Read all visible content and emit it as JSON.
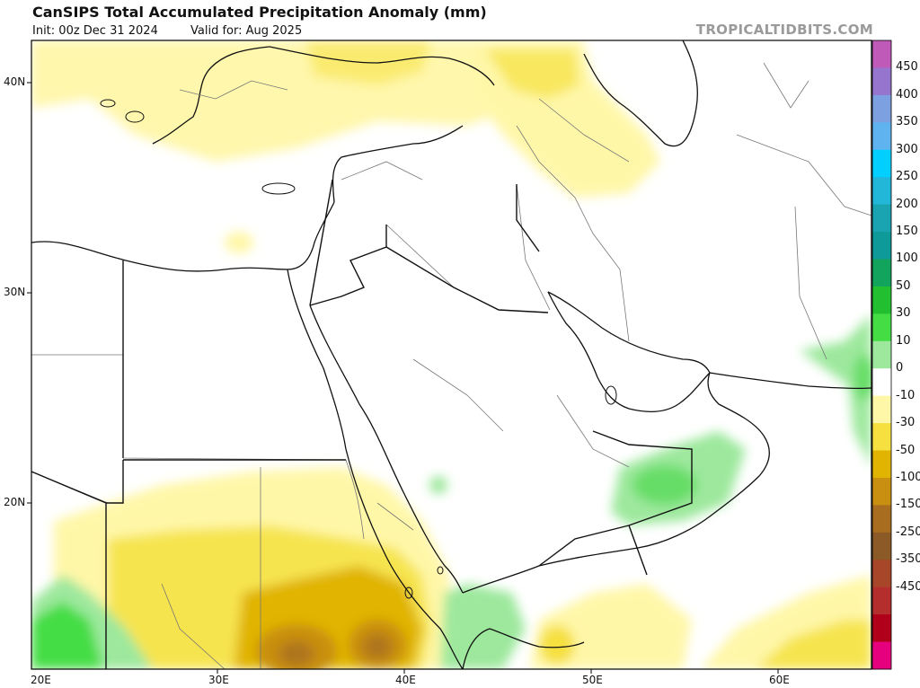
{
  "header": {
    "title": "CanSIPS Total Accumulated Precipitation Anomaly (mm)",
    "init": "Init: 00z Dec 31 2024",
    "valid": "Valid for: Aug 2025",
    "source": "TROPICALTIDBITS.COM"
  },
  "axes": {
    "lat_labels": [
      "40N",
      "30N",
      "20N"
    ],
    "lon_labels": [
      "20E",
      "30E",
      "40E",
      "50E",
      "60E"
    ]
  },
  "colorbar": {
    "labels": [
      "450",
      "400",
      "350",
      "300",
      "250",
      "200",
      "150",
      "100",
      "50",
      "30",
      "10",
      "0",
      "-10",
      "-30",
      "-50",
      "-100",
      "-150",
      "-250",
      "-350",
      "-450"
    ],
    "colors": [
      "#c05ab8",
      "#9575cd",
      "#7da0e0",
      "#5fb3ef",
      "#00cfff",
      "#22b6d8",
      "#1aa3b0",
      "#0f9a9a",
      "#12a35c",
      "#22c030",
      "#44dd44",
      "#9de89d",
      "#ffffff",
      "#fff7a8",
      "#f5e040",
      "#e0b400",
      "#c88f10",
      "#a86d1e",
      "#8c5a26",
      "#a8462a",
      "#b52e2e",
      "#b0001a",
      "#e6007e"
    ]
  }
}
